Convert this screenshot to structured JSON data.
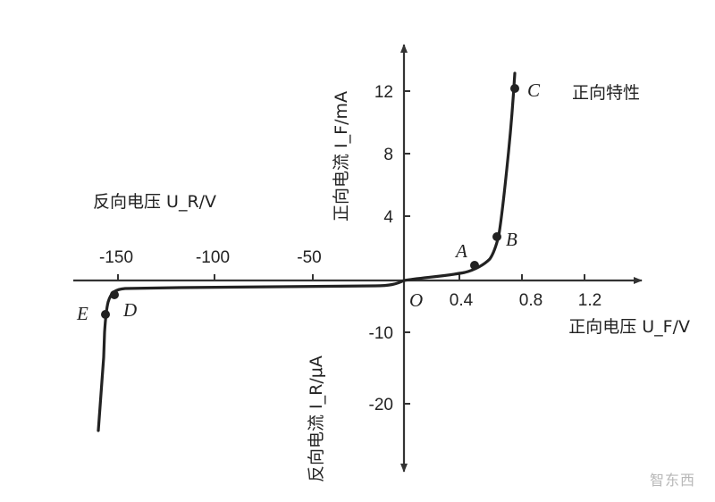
{
  "labels": {
    "forward_characteristic": "正向特性",
    "forward_current_axis": "正向电流 I_F/mA",
    "forward_voltage_axis": "正向电压 U_F/V",
    "reverse_voltage_axis": "反向电压 U_R/V",
    "reverse_current_axis": "反向电流 I_R/μA",
    "origin": "O"
  },
  "points": [
    {
      "label": "A"
    },
    {
      "label": "B"
    },
    {
      "label": "C"
    },
    {
      "label": "D"
    },
    {
      "label": "E"
    }
  ],
  "ticks": {
    "forward_voltage": [
      "0.4",
      "0.8",
      "1.2"
    ],
    "reverse_voltage": [
      "-150",
      "-100",
      "-50"
    ],
    "forward_current": [
      "4",
      "8",
      "12"
    ],
    "reverse_current": [
      "-10",
      "-20"
    ]
  },
  "watermark": "智东西"
}
